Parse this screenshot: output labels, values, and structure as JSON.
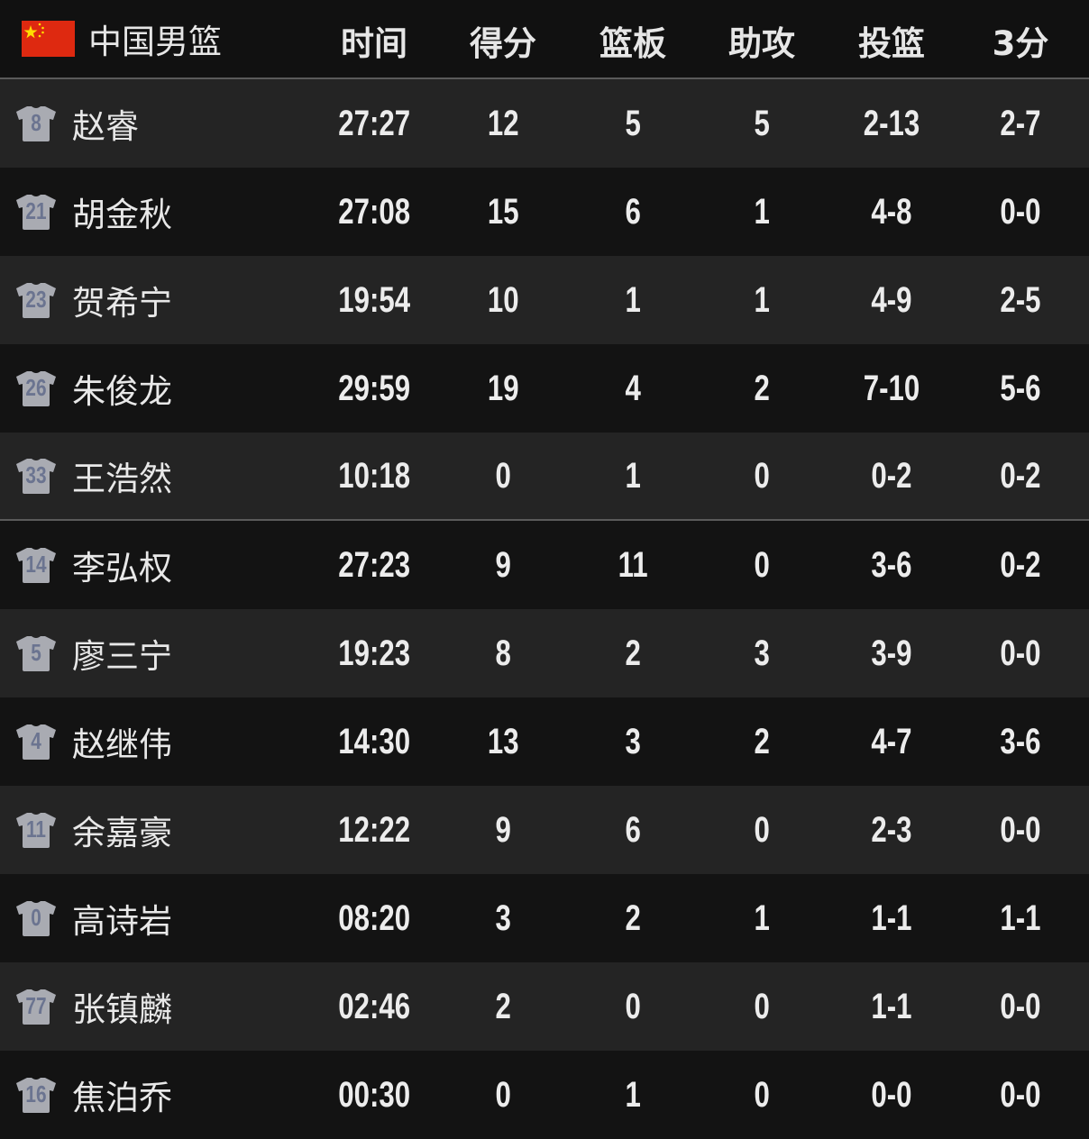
{
  "header": {
    "team_name": "中国男篮",
    "flag_icon": "china-flag-icon",
    "columns": [
      "时间",
      "得分",
      "篮板",
      "助攻",
      "投篮",
      "3分"
    ]
  },
  "colors": {
    "bg": "#111111",
    "row_light": "#242424",
    "row_dark": "#131313",
    "jersey": "#a9abb2",
    "jersey_number": "#6b7490"
  },
  "players": [
    {
      "number": "8",
      "name": "赵睿",
      "stats": [
        "27:27",
        "12",
        "5",
        "5",
        "2-13",
        "2-7"
      ]
    },
    {
      "number": "21",
      "name": "胡金秋",
      "stats": [
        "27:08",
        "15",
        "6",
        "1",
        "4-8",
        "0-0"
      ]
    },
    {
      "number": "23",
      "name": "贺希宁",
      "stats": [
        "19:54",
        "10",
        "1",
        "1",
        "4-9",
        "2-5"
      ]
    },
    {
      "number": "26",
      "name": "朱俊龙",
      "stats": [
        "29:59",
        "19",
        "4",
        "2",
        "7-10",
        "5-6"
      ]
    },
    {
      "number": "33",
      "name": "王浩然",
      "stats": [
        "10:18",
        "0",
        "1",
        "0",
        "0-2",
        "0-2"
      ]
    },
    {
      "number": "14",
      "name": "李弘权",
      "stats": [
        "27:23",
        "9",
        "11",
        "0",
        "3-6",
        "0-2"
      ]
    },
    {
      "number": "5",
      "name": "廖三宁",
      "stats": [
        "19:23",
        "8",
        "2",
        "3",
        "3-9",
        "0-0"
      ]
    },
    {
      "number": "4",
      "name": "赵继伟",
      "stats": [
        "14:30",
        "13",
        "3",
        "2",
        "4-7",
        "3-6"
      ]
    },
    {
      "number": "11",
      "name": "余嘉豪",
      "stats": [
        "12:22",
        "9",
        "6",
        "0",
        "2-3",
        "0-0"
      ]
    },
    {
      "number": "0",
      "name": "高诗岩",
      "stats": [
        "08:20",
        "3",
        "2",
        "1",
        "1-1",
        "1-1"
      ]
    },
    {
      "number": "77",
      "name": "张镇麟",
      "stats": [
        "02:46",
        "2",
        "0",
        "0",
        "1-1",
        "0-0"
      ]
    },
    {
      "number": "16",
      "name": "焦泊乔",
      "stats": [
        "00:30",
        "0",
        "1",
        "0",
        "0-0",
        "0-0"
      ]
    }
  ]
}
